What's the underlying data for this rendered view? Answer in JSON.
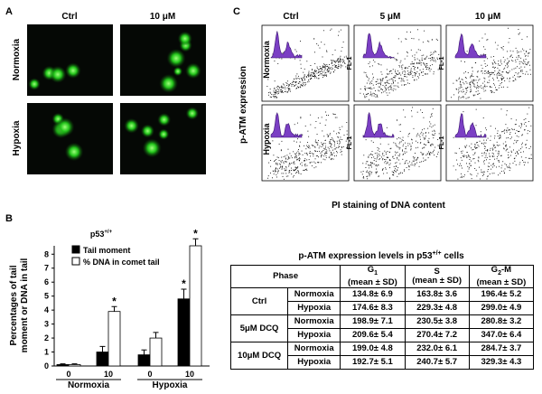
{
  "panel_a": {
    "label": "A",
    "columns": [
      "Ctrl",
      "10 μM"
    ],
    "rows": [
      "Normoxia",
      "Hypoxia"
    ]
  },
  "panel_c": {
    "label": "C",
    "columns": [
      "Ctrl",
      "5 μM",
      "10 μM"
    ],
    "rows": [
      "Normoxia",
      "Hypoxia"
    ],
    "y_label": "p-ATM expression",
    "x_label": "PI staining of DNA content",
    "inset_axis_label": "FL-1"
  },
  "panel_b": {
    "label": "B"
  },
  "chart_data": {
    "type": "bar",
    "title": {
      "base": "p53",
      "sup": "+/+"
    },
    "y_label": [
      "Percentages of tail",
      "moment  or DNA in tail"
    ],
    "groups": [
      "Normoxia",
      "Hypoxia"
    ],
    "categories": [
      "0",
      "10",
      "0",
      "10"
    ],
    "series": [
      {
        "name": "Tail moment",
        "color": "#000000",
        "values": [
          0.1,
          1.0,
          0.8,
          4.8
        ],
        "errors": [
          0.05,
          0.4,
          0.35,
          0.7
        ],
        "significance": [
          null,
          null,
          null,
          "*"
        ]
      },
      {
        "name": "% DNA in comet tail",
        "color": "#ffffff",
        "values": [
          0.1,
          3.9,
          2.0,
          8.6
        ],
        "errors": [
          0.05,
          0.35,
          0.4,
          0.5
        ],
        "significance": [
          null,
          "*",
          null,
          "*"
        ]
      }
    ],
    "ylim": [
      0,
      8.6
    ],
    "yticks": [
      0,
      1,
      2,
      3,
      4,
      5,
      6,
      7,
      8
    ],
    "legend": "top-left"
  },
  "table": {
    "title": {
      "base": "p-ATM expression levels in p53",
      "sup": "+/+",
      "tail": " cells"
    },
    "header": {
      "phase": "Phase",
      "g1": {
        "base": "G",
        "sub": "1",
        "note": "(mean ± SD)"
      },
      "s": {
        "base": "S",
        "note": "(mean ± SD)"
      },
      "g2m": {
        "base": "G",
        "sub": "2",
        "tail": "-M",
        "note": "(mean ± SD)"
      }
    },
    "groups": [
      {
        "name": "Ctrl",
        "rows": [
          [
            "Normoxia",
            "134.8± 6.9",
            "163.8± 3.6",
            "196.4± 5.2"
          ],
          [
            "Hypoxia",
            "174.6± 8.3",
            "229.3± 4.8",
            "299.0± 4.9"
          ]
        ]
      },
      {
        "name": "5μM DCQ",
        "rows": [
          [
            "Normoxia",
            "198.9± 7.1",
            "230.5± 3.8",
            "280.8± 3.2"
          ],
          [
            "Hypoxia",
            "209.6± 5.4",
            "270.4± 7.2",
            "347.0± 6.4"
          ]
        ]
      },
      {
        "name": "10μM DCQ",
        "rows": [
          [
            "Normoxia",
            "199.0± 4.8",
            "232.0± 6.1",
            "284.7± 3.7"
          ],
          [
            "Hypoxia",
            "192.7± 5.1",
            "240.7± 5.7",
            "329.3± 4.3"
          ]
        ]
      }
    ]
  }
}
